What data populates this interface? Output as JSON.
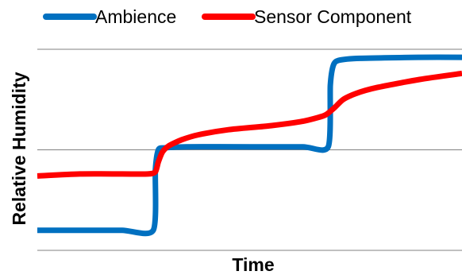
{
  "chart_data": {
    "type": "line",
    "title": "",
    "xlabel": "Time",
    "ylabel": "Relative Humidity",
    "x_ticks_shown": false,
    "y_ticks_shown": false,
    "grid": {
      "horizontal": true,
      "vertical": false
    },
    "legend_position": "top",
    "xlim": [
      0,
      100
    ],
    "ylim": [
      0,
      100
    ],
    "series": [
      {
        "name": "Ambience",
        "color": "#0070C0",
        "x": [
          0,
          10,
          20,
          27.3,
          27.8,
          28.5,
          30,
          35,
          50,
          62.5,
          68.5,
          69.0,
          69.7,
          71,
          76,
          90,
          100
        ],
        "y": [
          10,
          10,
          10,
          10,
          40,
          50,
          51,
          51.5,
          51.5,
          51.5,
          51.5,
          82,
          92,
          94.5,
          95.5,
          96,
          96
        ]
      },
      {
        "name": "Sensor Component",
        "color": "#FF0000",
        "x": [
          0,
          10,
          20,
          26,
          27.8,
          28.5,
          29.5,
          31,
          34,
          38,
          45,
          55,
          62,
          66,
          68,
          70,
          72,
          75,
          80,
          90,
          100
        ],
        "y": [
          37,
          38,
          38,
          38,
          39,
          44,
          49,
          52,
          55,
          57.5,
          60,
          62,
          64,
          66,
          67.5,
          71,
          75,
          78,
          81,
          85,
          88
        ]
      }
    ]
  }
}
